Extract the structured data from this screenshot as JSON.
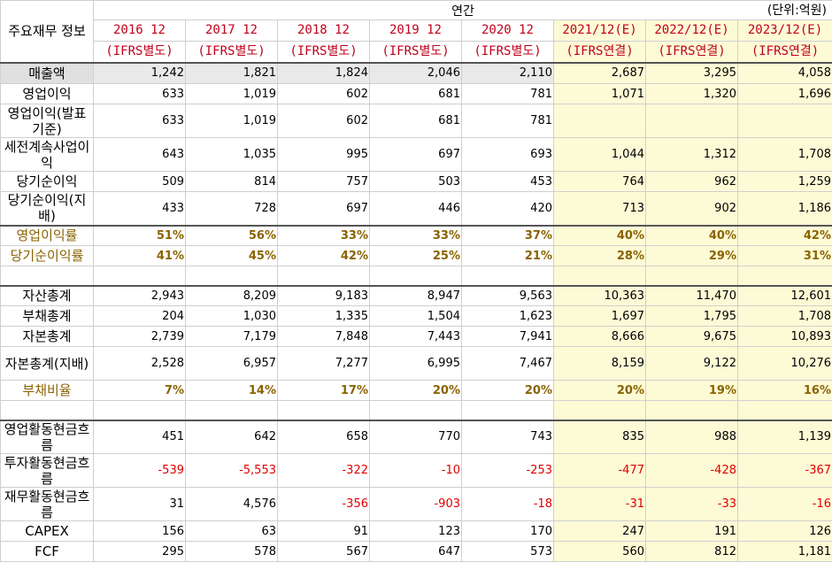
{
  "header": {
    "corner": "주요재무 정보",
    "group": "연간",
    "unit": "(단위:억원)",
    "years": [
      {
        "year": "2016 12",
        "basis": "(IFRS별도)"
      },
      {
        "year": "2017 12",
        "basis": "(IFRS별도)"
      },
      {
        "year": "2018 12",
        "basis": "(IFRS별도)"
      },
      {
        "year": "2019 12",
        "basis": "(IFRS별도)"
      },
      {
        "year": "2020 12",
        "basis": "(IFRS별도)"
      },
      {
        "year": "2021/12(E)",
        "basis": "(IFRS연결)"
      },
      {
        "year": "2022/12(E)",
        "basis": "(IFRS연결)"
      },
      {
        "year": "2023/12(E)",
        "basis": "(IFRS연결)"
      }
    ]
  },
  "rows": {
    "revenue": {
      "label": "매출액",
      "values": [
        "1,242",
        "1,821",
        "1,824",
        "2,046",
        "2,110",
        "2,687",
        "3,295",
        "4,058"
      ]
    },
    "op_income": {
      "label": "영업이익",
      "values": [
        "633",
        "1,019",
        "602",
        "681",
        "781",
        "1,071",
        "1,320",
        "1,696"
      ]
    },
    "op_income_reported": {
      "label": "영업이익(발표기준)",
      "values": [
        "633",
        "1,019",
        "602",
        "681",
        "781",
        "",
        "",
        ""
      ]
    },
    "pretax_income": {
      "label": "세전계속사업이익",
      "values": [
        "643",
        "1,035",
        "995",
        "697",
        "693",
        "1,044",
        "1,312",
        "1,708"
      ]
    },
    "net_income": {
      "label": "당기순이익",
      "values": [
        "509",
        "814",
        "757",
        "503",
        "453",
        "764",
        "962",
        "1,259"
      ]
    },
    "net_income_parent": {
      "label": "당기순이익(지배)",
      "values": [
        "433",
        "728",
        "697",
        "446",
        "420",
        "713",
        "902",
        "1,186"
      ]
    },
    "op_margin": {
      "label": "영업이익률",
      "values": [
        "51%",
        "56%",
        "33%",
        "33%",
        "37%",
        "40%",
        "40%",
        "42%"
      ]
    },
    "net_margin": {
      "label": "당기순이익률",
      "values": [
        "41%",
        "45%",
        "42%",
        "25%",
        "21%",
        "28%",
        "29%",
        "31%"
      ]
    },
    "total_assets": {
      "label": "자산총계",
      "values": [
        "2,943",
        "8,209",
        "9,183",
        "8,947",
        "9,563",
        "10,363",
        "11,470",
        "12,601"
      ]
    },
    "total_liabilities": {
      "label": "부채총계",
      "values": [
        "204",
        "1,030",
        "1,335",
        "1,504",
        "1,623",
        "1,697",
        "1,795",
        "1,708"
      ]
    },
    "total_equity": {
      "label": "자본총계",
      "values": [
        "2,739",
        "7,179",
        "7,848",
        "7,443",
        "7,941",
        "8,666",
        "9,675",
        "10,893"
      ]
    },
    "total_equity_parent": {
      "label": "자본총계(지배)",
      "values": [
        "2,528",
        "6,957",
        "7,277",
        "6,995",
        "7,467",
        "8,159",
        "9,122",
        "10,276"
      ]
    },
    "debt_ratio": {
      "label": "부채비율",
      "values": [
        "7%",
        "14%",
        "17%",
        "20%",
        "20%",
        "20%",
        "19%",
        "16%"
      ]
    },
    "cfo": {
      "label": "영업활동현금흐름",
      "values": [
        "451",
        "642",
        "658",
        "770",
        "743",
        "835",
        "988",
        "1,139"
      ]
    },
    "cfi": {
      "label": "투자활동현금흐름",
      "values": [
        "-539",
        "-5,553",
        "-322",
        "-10",
        "-253",
        "-477",
        "-428",
        "-367"
      ]
    },
    "cff": {
      "label": "재무활동현금흐름",
      "values": [
        "31",
        "4,576",
        "-356",
        "-903",
        "-18",
        "-31",
        "-33",
        "-16"
      ]
    },
    "capex": {
      "label": "CAPEX",
      "values": [
        "156",
        "63",
        "91",
        "123",
        "170",
        "247",
        "191",
        "126"
      ]
    },
    "fcf": {
      "label": "FCF",
      "values": [
        "295",
        "578",
        "567",
        "647",
        "573",
        "560",
        "812",
        "1,181"
      ]
    }
  }
}
